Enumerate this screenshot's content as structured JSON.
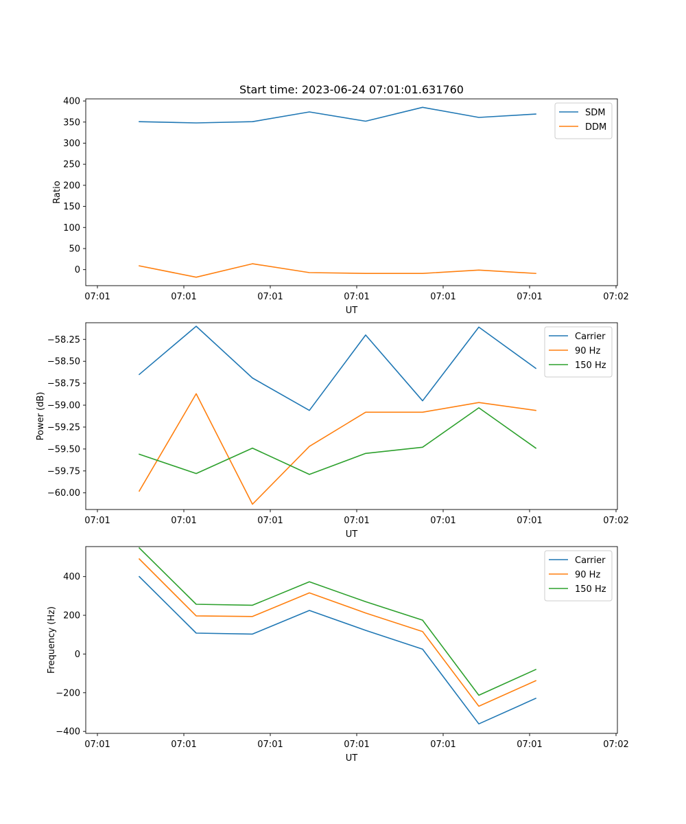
{
  "figure_title": "Start time: 2023-06-24 07:01:01.631760",
  "colors": {
    "blue": "#1f77b4",
    "orange": "#ff7f0e",
    "green": "#2ca02c"
  },
  "chart_data": [
    {
      "type": "line",
      "title": "Start time: 2023-06-24 07:01:01.631760",
      "xlabel": "UT",
      "ylabel": "Ratio",
      "x_tick_labels": [
        "07:01",
        "07:01",
        "07:01",
        "07:01",
        "07:01",
        "07:01",
        "07:02"
      ],
      "ylim": [
        -38,
        405
      ],
      "y_ticks": [
        0,
        50,
        100,
        150,
        200,
        250,
        300,
        350,
        400
      ],
      "y_tick_labels": [
        "0",
        "50",
        "100",
        "150",
        "200",
        "250",
        "300",
        "350",
        "400"
      ],
      "legend_position": "top-right",
      "series": [
        {
          "name": "SDM",
          "color": "#1f77b4",
          "values": [
            351,
            348,
            351,
            374,
            352,
            385,
            361,
            369
          ]
        },
        {
          "name": "DDM",
          "color": "#ff7f0e",
          "values": [
            9,
            -18,
            14,
            -7,
            -9,
            -9,
            -1,
            -9
          ]
        }
      ]
    },
    {
      "type": "line",
      "xlabel": "UT",
      "ylabel": "Power (dB)",
      "x_tick_labels": [
        "07:01",
        "07:01",
        "07:01",
        "07:01",
        "07:01",
        "07:01",
        "07:02"
      ],
      "ylim": [
        -60.19,
        -58.06
      ],
      "y_ticks": [
        -60.0,
        -59.75,
        -59.5,
        -59.25,
        -59.0,
        -58.75,
        -58.5,
        -58.25
      ],
      "y_tick_labels": [
        "−60.00",
        "−59.75",
        "−59.50",
        "−59.25",
        "−59.00",
        "−58.75",
        "−58.50",
        "−58.25"
      ],
      "legend_position": "top-right",
      "series": [
        {
          "name": "Carrier",
          "color": "#1f77b4",
          "values": [
            -58.65,
            -58.1,
            -58.69,
            -59.06,
            -58.2,
            -58.95,
            -58.11,
            -58.58
          ]
        },
        {
          "name": "90 Hz",
          "color": "#ff7f0e",
          "values": [
            -59.98,
            -58.87,
            -60.13,
            -59.47,
            -59.08,
            -59.08,
            -58.97,
            -59.06
          ]
        },
        {
          "name": "150 Hz",
          "color": "#2ca02c",
          "values": [
            -59.56,
            -59.78,
            -59.49,
            -59.79,
            -59.55,
            -59.48,
            -59.03,
            -59.49
          ]
        }
      ]
    },
    {
      "type": "line",
      "xlabel": "UT",
      "ylabel": "Frequency (Hz)",
      "x_tick_labels": [
        "07:01",
        "07:01",
        "07:01",
        "07:01",
        "07:01",
        "07:01",
        "07:02"
      ],
      "ylim": [
        -410,
        555
      ],
      "y_ticks": [
        -400,
        -200,
        0,
        200,
        400
      ],
      "y_tick_labels": [
        "−400",
        "−200",
        "0",
        "200",
        "400"
      ],
      "legend_position": "top-right",
      "series": [
        {
          "name": "Carrier",
          "color": "#1f77b4",
          "values": [
            400,
            108,
            103,
            225,
            122,
            25,
            -361,
            -229
          ]
        },
        {
          "name": "90 Hz",
          "color": "#ff7f0e",
          "values": [
            491,
            197,
            194,
            316,
            212,
            116,
            -270,
            -138
          ]
        },
        {
          "name": "150 Hz",
          "color": "#2ca02c",
          "values": [
            548,
            257,
            252,
            373,
            270,
            175,
            -213,
            -80
          ]
        }
      ]
    }
  ]
}
